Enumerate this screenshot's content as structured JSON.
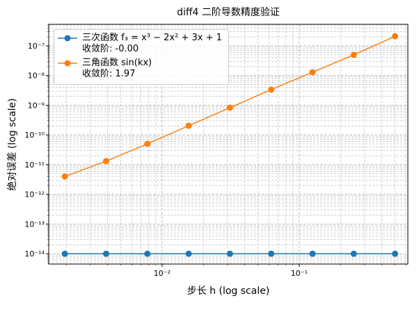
{
  "chart_data": {
    "type": "line",
    "title": "diff4 二阶导数精度验证",
    "xlabel": "步长 h (log scale)",
    "ylabel": "绝对误差 (log scale)",
    "x": [
      0.001953125,
      0.00390625,
      0.0078125,
      0.015625,
      0.03125,
      0.0625,
      0.125,
      0.25,
      0.5
    ],
    "series": [
      {
        "name": "三次函数 f₃ = x³ − 2x² + 3x + 1\n收敛阶: -0.00",
        "color": "#1f77b4",
        "values": [
          1e-14,
          1e-14,
          1e-14,
          1e-14,
          1e-14,
          1e-14,
          1e-14,
          1e-14,
          1e-14
        ]
      },
      {
        "name": "三角函数 sin(kx)\n收敛阶: 1.97",
        "color": "#ff7f0e",
        "values": [
          4e-12,
          1.31e-11,
          5e-11,
          2.04e-10,
          8.28e-10,
          3.36e-09,
          1.29e-08,
          4.97e-08,
          2.1e-07
        ]
      }
    ],
    "xscale": "log",
    "yscale": "log",
    "xlim": [
      0.00149,
      0.62
    ],
    "ylim": [
      4.5e-15,
      5.3e-07
    ],
    "xticks": [
      {
        "value": 0.01,
        "label": "10⁻²"
      },
      {
        "value": 0.1,
        "label": "10⁻¹"
      }
    ],
    "yticks": [
      {
        "value": 1e-14,
        "label": "10⁻¹⁴"
      },
      {
        "value": 1e-13,
        "label": "10⁻¹³"
      },
      {
        "value": 1e-12,
        "label": "10⁻¹²"
      },
      {
        "value": 1e-11,
        "label": "10⁻¹¹"
      },
      {
        "value": 1e-10,
        "label": "10⁻¹⁰"
      },
      {
        "value": 1e-09,
        "label": "10⁻⁹"
      },
      {
        "value": 1e-08,
        "label": "10⁻⁸"
      },
      {
        "value": 1e-07,
        "label": "10⁻⁷"
      }
    ],
    "grid": true,
    "minor_grid": true,
    "legend": "upper left"
  }
}
